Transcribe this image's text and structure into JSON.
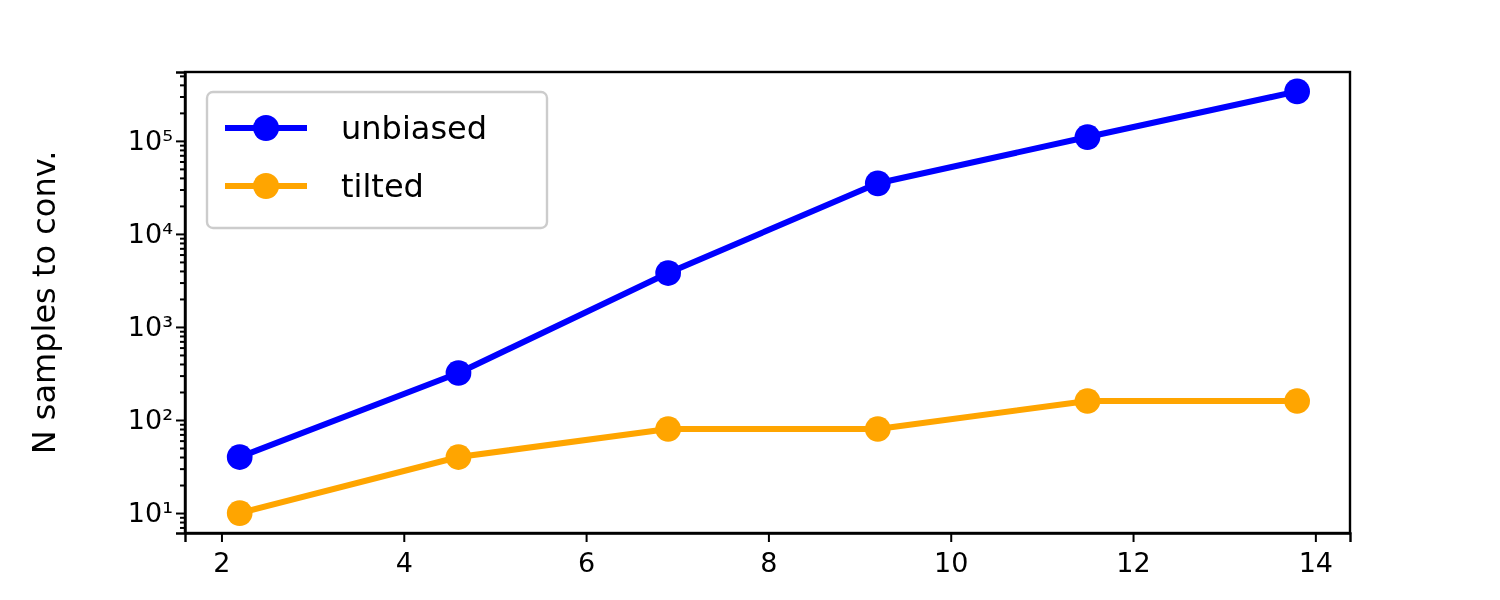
{
  "chart_data": {
    "type": "line",
    "ylabel": "N samples to conv.",
    "x": [
      2.2,
      4.6,
      6.9,
      9.2,
      11.5,
      13.8
    ],
    "series": [
      {
        "name": "unbiased",
        "color": "#0000ff",
        "values": [
          40,
          320,
          3800,
          35000,
          110000,
          340000
        ]
      },
      {
        "name": "tilted",
        "color": "#ffa500",
        "values": [
          10,
          40,
          80,
          80,
          160,
          160
        ]
      }
    ],
    "xlim": [
      1.6,
      14.38
    ],
    "xticks": [
      2,
      4,
      6,
      8,
      10,
      12,
      14
    ],
    "ylim": [
      6.1,
      550000
    ],
    "yticks": [
      {
        "value": 7,
        "label": null
      },
      {
        "value": 8,
        "label": null
      },
      {
        "value": 9,
        "label": null
      },
      {
        "value": 10,
        "label": "10¹"
      },
      {
        "value": 20,
        "label": null
      },
      {
        "value": 30,
        "label": null
      },
      {
        "value": 40,
        "label": null
      },
      {
        "value": 50,
        "label": null
      },
      {
        "value": 60,
        "label": null
      },
      {
        "value": 70,
        "label": null
      },
      {
        "value": 80,
        "label": null
      },
      {
        "value": 90,
        "label": null
      },
      {
        "value": 100,
        "label": "10²"
      },
      {
        "value": 200,
        "label": null
      },
      {
        "value": 300,
        "label": null
      },
      {
        "value": 400,
        "label": null
      },
      {
        "value": 500,
        "label": null
      },
      {
        "value": 600,
        "label": null
      },
      {
        "value": 700,
        "label": null
      },
      {
        "value": 800,
        "label": null
      },
      {
        "value": 900,
        "label": null
      },
      {
        "value": 1000,
        "label": "10³"
      },
      {
        "value": 2000,
        "label": null
      },
      {
        "value": 3000,
        "label": null
      },
      {
        "value": 4000,
        "label": null
      },
      {
        "value": 5000,
        "label": null
      },
      {
        "value": 6000,
        "label": null
      },
      {
        "value": 7000,
        "label": null
      },
      {
        "value": 8000,
        "label": null
      },
      {
        "value": 9000,
        "label": null
      },
      {
        "value": 10000,
        "label": "10⁴"
      },
      {
        "value": 20000,
        "label": null
      },
      {
        "value": 30000,
        "label": null
      },
      {
        "value": 40000,
        "label": null
      },
      {
        "value": 50000,
        "label": null
      },
      {
        "value": 60000,
        "label": null
      },
      {
        "value": 70000,
        "label": null
      },
      {
        "value": 80000,
        "label": null
      },
      {
        "value": 90000,
        "label": null
      },
      {
        "value": 100000,
        "label": "10⁵"
      },
      {
        "value": 200000,
        "label": null
      },
      {
        "value": 300000,
        "label": null
      },
      {
        "value": 400000,
        "label": null
      },
      {
        "value": 500000,
        "label": null
      }
    ],
    "log": "y",
    "legend": "top left",
    "marker": "circle",
    "line_style": "solid",
    "grid": false
  }
}
